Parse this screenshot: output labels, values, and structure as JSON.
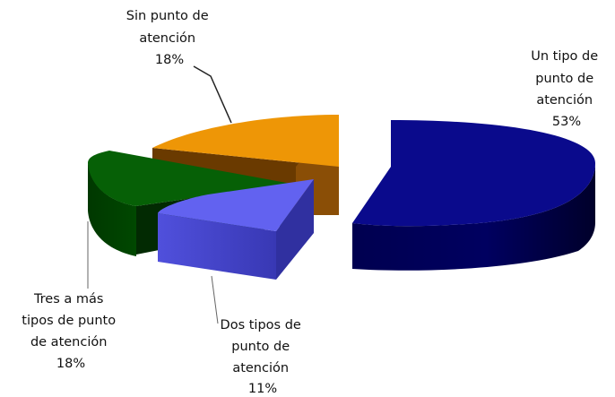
{
  "chart_data": {
    "type": "pie",
    "style": "3d-exploded",
    "slices": [
      {
        "label_lines": [
          "Un tipo de",
          "punto de",
          "atención"
        ],
        "value_text": "53%",
        "value": 53,
        "color": "#0a0a8c"
      },
      {
        "label_lines": [
          "Dos tipos de",
          "punto de",
          "atención"
        ],
        "value_text": "11%",
        "value": 11,
        "color": "#6262f0"
      },
      {
        "label_lines": [
          "Tres a más",
          "tipos de punto",
          "de atención"
        ],
        "value_text": "18%",
        "value": 18,
        "color": "#066006"
      },
      {
        "label_lines": [
          "Sin punto de",
          "atención"
        ],
        "value_text": "18%",
        "value": 18,
        "color": "#ee9606"
      }
    ]
  }
}
